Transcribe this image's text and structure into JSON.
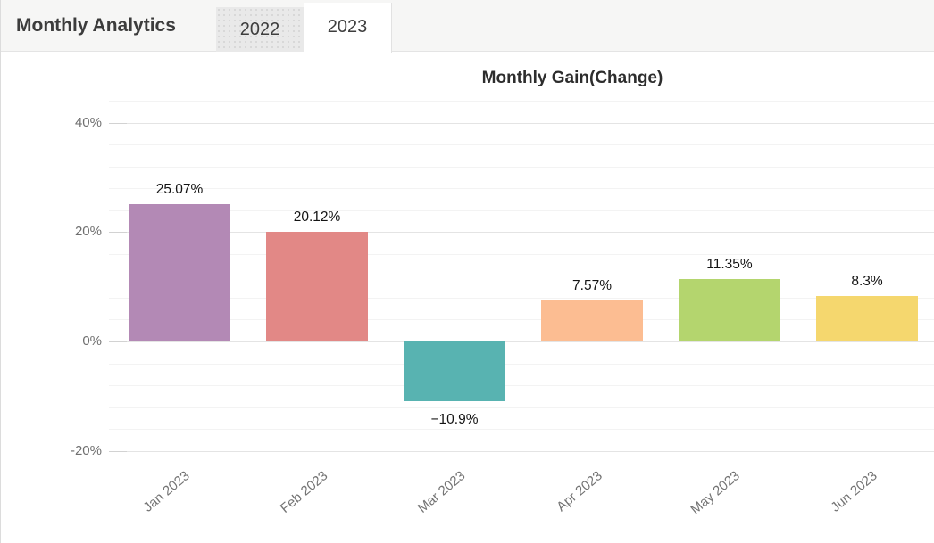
{
  "header": {
    "title": "Monthly Analytics",
    "tabs": [
      {
        "label": "2022",
        "active": false
      },
      {
        "label": "2023",
        "active": true
      }
    ]
  },
  "chart_data": {
    "type": "bar",
    "title": "Monthly Gain(Change)",
    "categories": [
      "Jan 2023",
      "Feb 2023",
      "Mar 2023",
      "Apr 2023",
      "May 2023",
      "Jun 2023"
    ],
    "values": [
      25.07,
      20.12,
      -10.9,
      7.57,
      11.35,
      8.3
    ],
    "value_labels": [
      "25.07%",
      "20.12%",
      "−10.9%",
      "7.57%",
      "11.35%",
      "8.3%"
    ],
    "bar_colors": [
      "#b389b5",
      "#e28886",
      "#58b3b1",
      "#fcbd92",
      "#b4d56e",
      "#f5d76e"
    ],
    "y_axis": {
      "tick_labels": [
        "40%",
        "20%",
        "0%",
        "-20%"
      ],
      "tick_values": [
        40,
        20,
        0,
        -20
      ],
      "min": -20,
      "max": 44,
      "major_step": 20,
      "minor_step": 4
    },
    "grid": true,
    "legend": false,
    "label_rotation_deg": -40
  }
}
